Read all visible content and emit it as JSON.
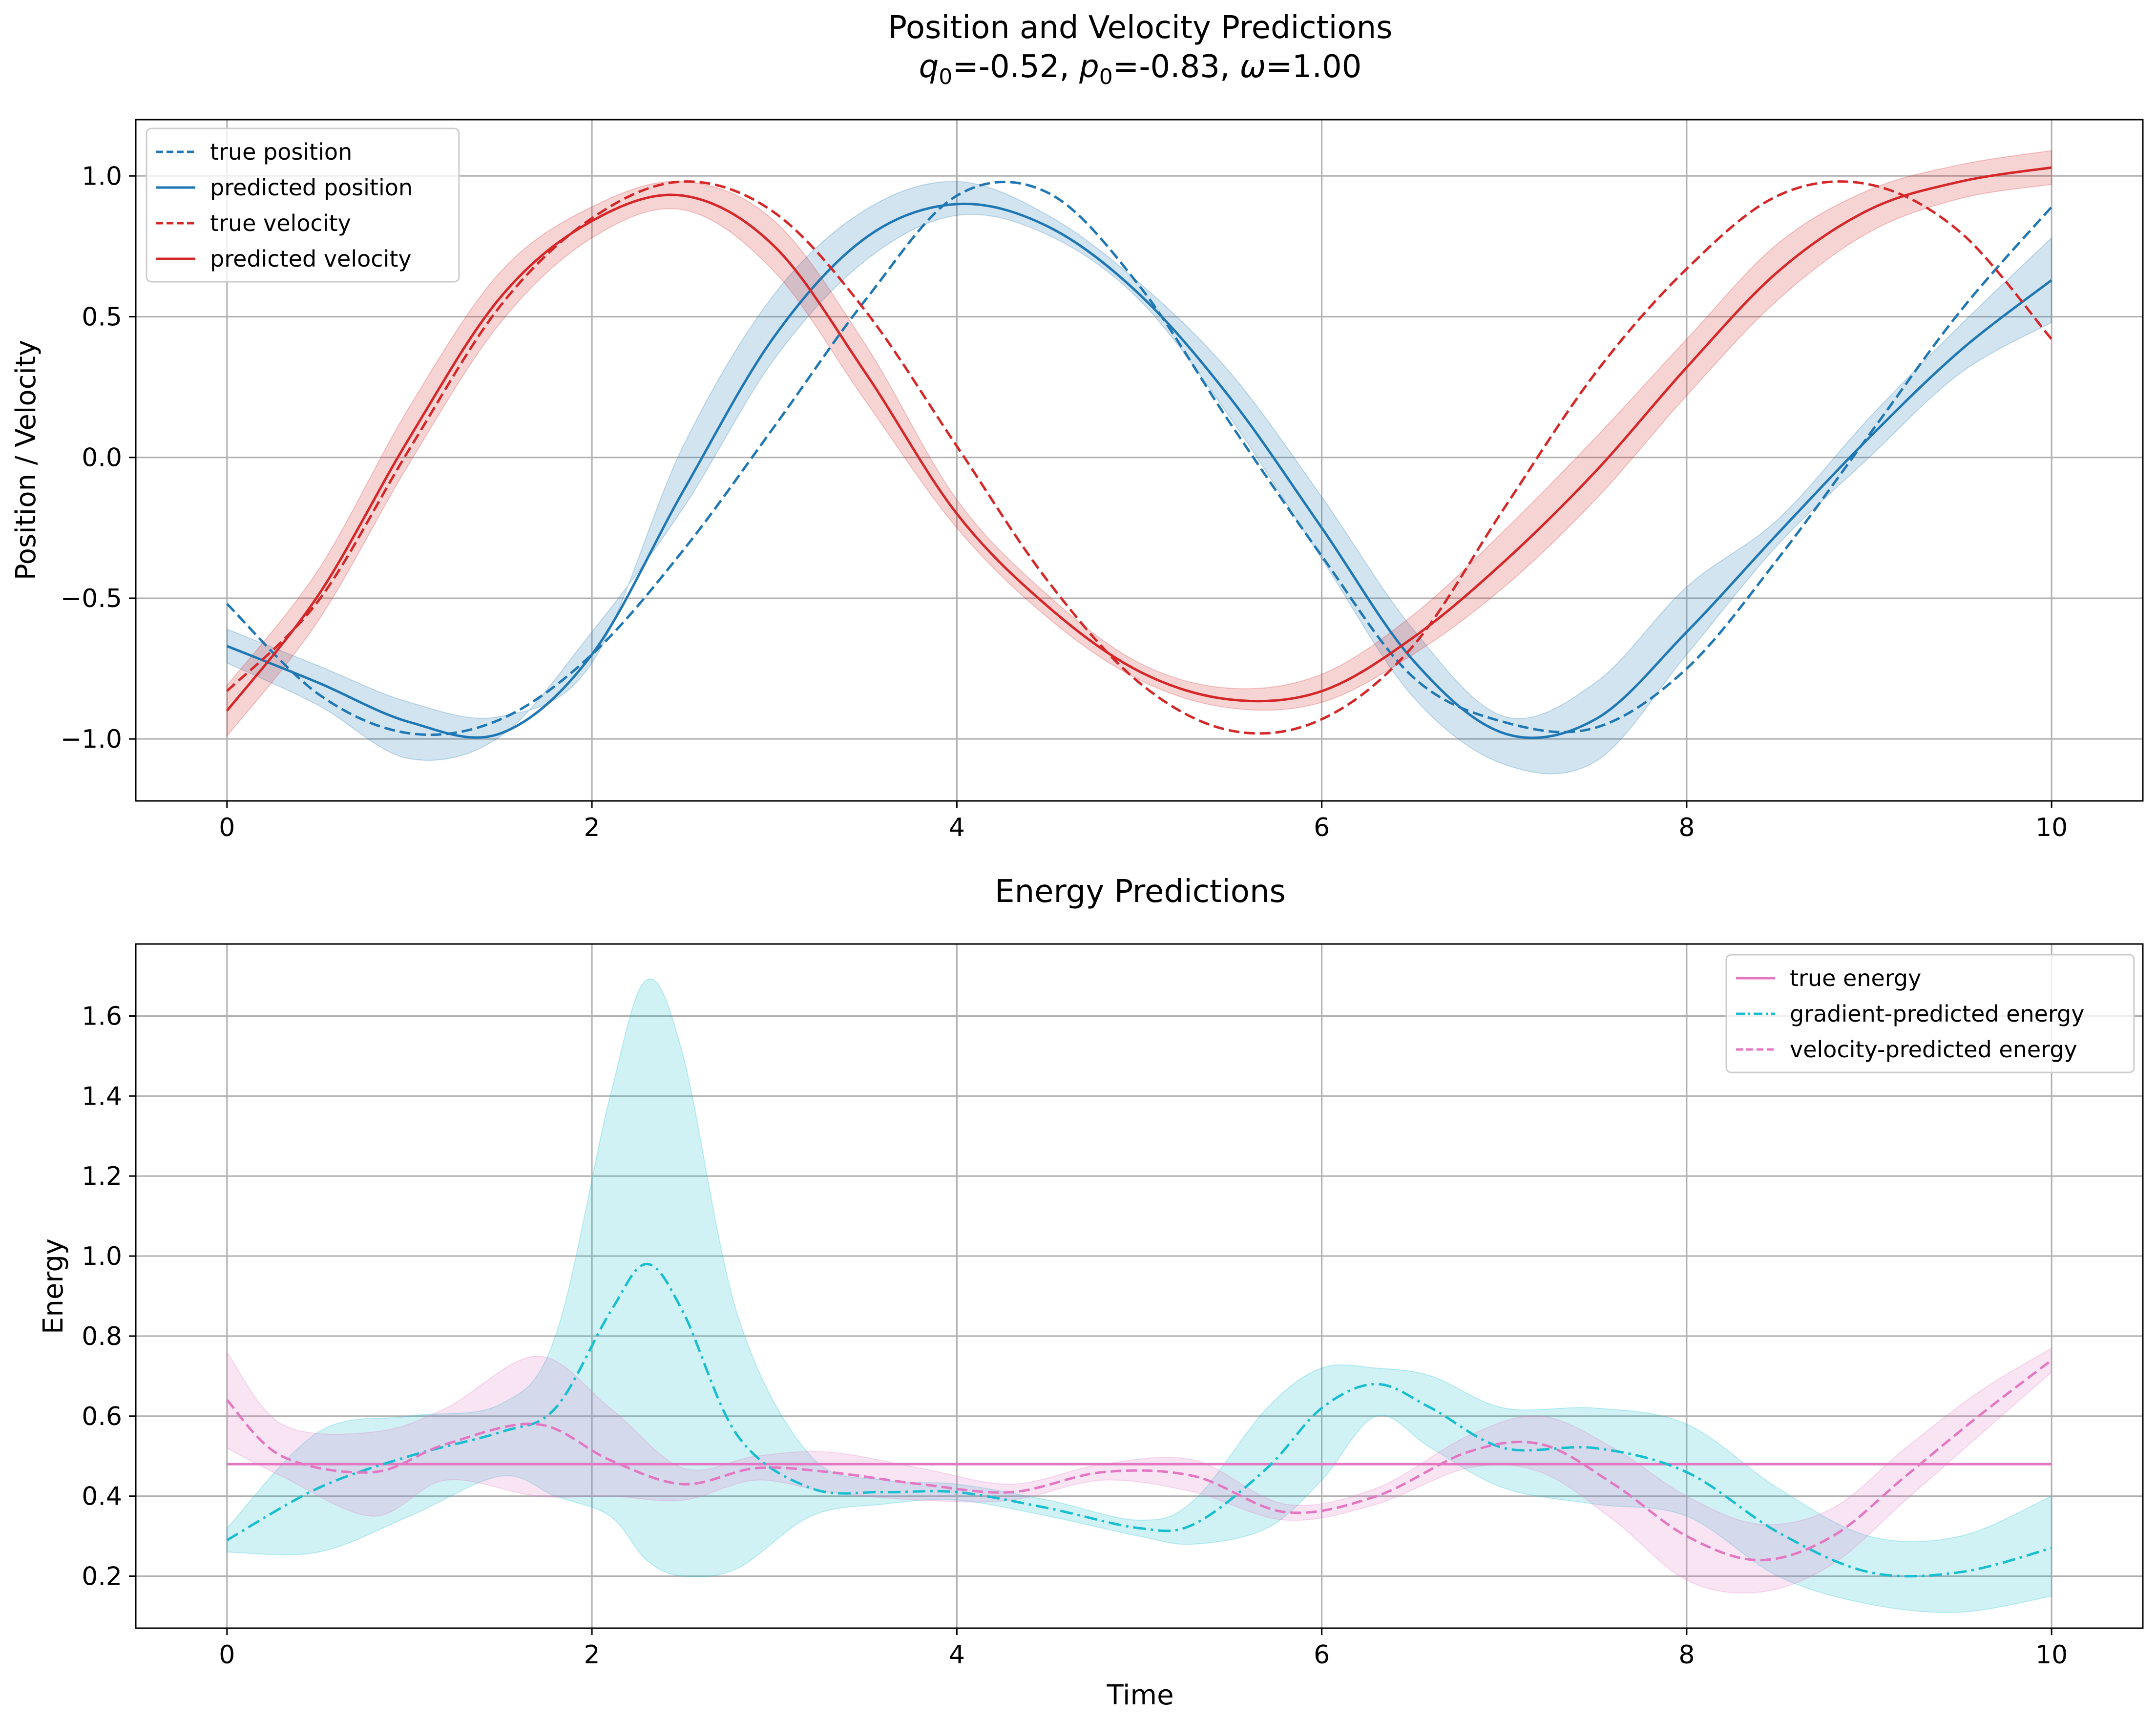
{
  "chart_data": [
    {
      "type": "line",
      "title": "Position and Velocity Predictions",
      "subtitle": {
        "q_symbol": "q",
        "q_sub": "0",
        "q_value": "=-0.52, ",
        "p_symbol": "p",
        "p_sub": "0",
        "p_value": "=-0.83, ",
        "omega_symbol": "ω",
        "omega_value": "=1.00"
      },
      "xlabel": "",
      "ylabel": "Position / Velocity",
      "xlim": [
        -0.5,
        10.5
      ],
      "ylim": [
        -1.22,
        1.2
      ],
      "xticks": [
        0,
        2,
        4,
        6,
        8,
        10
      ],
      "xtick_labels": [
        "0",
        "2",
        "4",
        "6",
        "8",
        "10"
      ],
      "yticks": [
        -1.0,
        -0.5,
        0.0,
        0.5,
        1.0
      ],
      "ytick_labels": [
        "−1.0",
        "−0.5",
        "0.0",
        "0.5",
        "1.0"
      ],
      "grid": true,
      "legend_position": "top-left",
      "legend": [
        "true position",
        "predicted position",
        "true velocity",
        "predicted velocity"
      ],
      "series": [
        {
          "name": "true position",
          "color": "#1f77b4",
          "style": "dashed",
          "x": [
            0,
            0.5,
            1,
            1.5,
            2,
            2.5,
            3,
            3.5,
            4,
            4.5,
            5,
            5.5,
            6,
            6.5,
            7,
            7.5,
            8,
            8.5,
            9,
            9.5,
            10
          ],
          "y": [
            -0.52,
            -0.84,
            -0.98,
            -0.93,
            -0.7,
            -0.33,
            0.11,
            0.56,
            0.93,
            0.94,
            0.61,
            0.12,
            -0.35,
            -0.78,
            -0.94,
            -0.96,
            -0.75,
            -0.36,
            0.08,
            0.52,
            0.89
          ]
        },
        {
          "name": "predicted position",
          "color": "#1f77b4",
          "style": "solid",
          "x": [
            0,
            0.5,
            1,
            1.5,
            2,
            2.5,
            3,
            3.5,
            4,
            4.5,
            5,
            5.5,
            6,
            6.5,
            7,
            7.5,
            8,
            8.5,
            9,
            9.5,
            10
          ],
          "y": [
            -0.67,
            -0.8,
            -0.94,
            -0.98,
            -0.7,
            -0.12,
            0.43,
            0.78,
            0.9,
            0.82,
            0.58,
            0.21,
            -0.25,
            -0.72,
            -0.98,
            -0.93,
            -0.62,
            -0.27,
            0.07,
            0.38,
            0.63
          ],
          "band_lower": [
            -0.73,
            -0.88,
            -1.07,
            -0.99,
            -0.62,
            -0.18,
            0.35,
            0.7,
            0.86,
            0.79,
            0.56,
            0.14,
            -0.36,
            -0.85,
            -1.09,
            -1.08,
            -0.7,
            -0.31,
            0.0,
            0.3,
            0.48
          ],
          "band_upper": [
            -0.61,
            -0.74,
            -0.87,
            -0.92,
            -0.73,
            0.04,
            0.58,
            0.88,
            0.98,
            0.86,
            0.62,
            0.3,
            -0.14,
            -0.61,
            -0.92,
            -0.8,
            -0.46,
            -0.22,
            0.14,
            0.47,
            0.78
          ]
        },
        {
          "name": "true velocity",
          "color": "#d62728",
          "style": "dashed",
          "x": [
            0,
            0.5,
            1,
            1.5,
            2,
            2.5,
            3,
            3.5,
            4,
            4.5,
            5,
            5.5,
            6,
            6.5,
            7,
            7.5,
            8,
            8.5,
            9,
            9.5,
            10
          ],
          "y": [
            -0.83,
            -0.51,
            0.03,
            0.54,
            0.85,
            0.98,
            0.87,
            0.52,
            0.04,
            -0.44,
            -0.8,
            -0.97,
            -0.93,
            -0.67,
            -0.18,
            0.3,
            0.67,
            0.93,
            0.97,
            0.8,
            0.42
          ]
        },
        {
          "name": "predicted velocity",
          "color": "#d62728",
          "style": "solid",
          "x": [
            0,
            0.5,
            1,
            1.5,
            2,
            2.5,
            3,
            3.5,
            4,
            4.5,
            5,
            5.5,
            6,
            6.5,
            7,
            7.5,
            8,
            8.5,
            9,
            9.5,
            10
          ],
          "y": [
            -0.9,
            -0.49,
            0.07,
            0.57,
            0.84,
            0.93,
            0.75,
            0.3,
            -0.2,
            -0.53,
            -0.76,
            -0.86,
            -0.83,
            -0.64,
            -0.37,
            -0.05,
            0.32,
            0.66,
            0.88,
            0.98,
            1.03
          ],
          "band_lower": [
            -0.99,
            -0.58,
            -0.02,
            0.48,
            0.78,
            0.88,
            0.66,
            0.2,
            -0.25,
            -0.57,
            -0.79,
            -0.89,
            -0.87,
            -0.7,
            -0.46,
            -0.15,
            0.22,
            0.56,
            0.8,
            0.92,
            0.97
          ],
          "band_upper": [
            -0.81,
            -0.4,
            0.18,
            0.66,
            0.89,
            0.98,
            0.84,
            0.4,
            -0.15,
            -0.49,
            -0.73,
            -0.82,
            -0.77,
            -0.56,
            -0.26,
            0.07,
            0.42,
            0.76,
            0.95,
            1.04,
            1.09
          ]
        }
      ]
    },
    {
      "type": "line",
      "title": "Energy Predictions",
      "xlabel": "Time",
      "ylabel": "Energy",
      "xlim": [
        -0.5,
        10.5
      ],
      "ylim": [
        0.07,
        1.78
      ],
      "xticks": [
        0,
        2,
        4,
        6,
        8,
        10
      ],
      "xtick_labels": [
        "0",
        "2",
        "4",
        "6",
        "8",
        "10"
      ],
      "yticks": [
        0.2,
        0.4,
        0.6,
        0.8,
        1.0,
        1.2,
        1.4,
        1.6
      ],
      "ytick_labels": [
        "0.2",
        "0.4",
        "0.6",
        "0.8",
        "1.0",
        "1.2",
        "1.4",
        "1.6"
      ],
      "grid": true,
      "legend_position": "top-right",
      "legend": [
        "true energy",
        "gradient-predicted energy",
        "velocity-predicted energy"
      ],
      "series": [
        {
          "name": "true energy",
          "color": "#e377c2",
          "style": "solid",
          "x": [
            0,
            10
          ],
          "y": [
            0.48,
            0.48
          ]
        },
        {
          "name": "gradient-predicted energy",
          "color": "#17becf",
          "style": "dashdot",
          "x": [
            0,
            0.5,
            1,
            1.5,
            1.8,
            2.1,
            2.3,
            2.5,
            2.8,
            3.2,
            3.6,
            4,
            4.5,
            5,
            5.3,
            5.7,
            6,
            6.3,
            6.6,
            7,
            7.5,
            8,
            8.5,
            9,
            9.5,
            10
          ],
          "y": [
            0.29,
            0.42,
            0.5,
            0.56,
            0.62,
            0.86,
            0.98,
            0.86,
            0.55,
            0.42,
            0.41,
            0.41,
            0.37,
            0.32,
            0.33,
            0.47,
            0.62,
            0.68,
            0.62,
            0.52,
            0.52,
            0.46,
            0.31,
            0.21,
            0.21,
            0.27
          ],
          "band_lower": [
            0.26,
            0.26,
            0.35,
            0.45,
            0.4,
            0.35,
            0.24,
            0.2,
            0.22,
            0.35,
            0.38,
            0.39,
            0.35,
            0.3,
            0.28,
            0.32,
            0.44,
            0.6,
            0.52,
            0.42,
            0.38,
            0.35,
            0.2,
            0.13,
            0.11,
            0.15
          ],
          "band_upper": [
            0.32,
            0.56,
            0.6,
            0.63,
            0.8,
            1.4,
            1.69,
            1.5,
            0.85,
            0.5,
            0.44,
            0.43,
            0.39,
            0.34,
            0.39,
            0.62,
            0.72,
            0.72,
            0.7,
            0.62,
            0.62,
            0.58,
            0.42,
            0.3,
            0.3,
            0.4
          ]
        },
        {
          "name": "velocity-predicted energy",
          "color": "#e377c2",
          "style": "dashed",
          "x": [
            0,
            0.3,
            0.8,
            1.2,
            1.7,
            2.1,
            2.5,
            2.9,
            3.3,
            3.8,
            4.3,
            4.8,
            5.3,
            5.8,
            6.3,
            6.8,
            7.2,
            7.6,
            8,
            8.4,
            8.8,
            9.2,
            9.6,
            10
          ],
          "y": [
            0.64,
            0.5,
            0.46,
            0.53,
            0.58,
            0.49,
            0.43,
            0.47,
            0.46,
            0.43,
            0.41,
            0.46,
            0.45,
            0.36,
            0.4,
            0.51,
            0.53,
            0.43,
            0.3,
            0.24,
            0.3,
            0.45,
            0.6,
            0.74
          ],
          "band_lower": [
            0.52,
            0.45,
            0.35,
            0.44,
            0.4,
            0.4,
            0.39,
            0.44,
            0.41,
            0.39,
            0.39,
            0.44,
            0.41,
            0.34,
            0.38,
            0.47,
            0.46,
            0.34,
            0.19,
            0.16,
            0.23,
            0.39,
            0.55,
            0.71
          ],
          "band_upper": [
            0.76,
            0.58,
            0.56,
            0.62,
            0.75,
            0.62,
            0.47,
            0.5,
            0.51,
            0.47,
            0.43,
            0.48,
            0.49,
            0.38,
            0.42,
            0.55,
            0.6,
            0.52,
            0.4,
            0.33,
            0.37,
            0.52,
            0.66,
            0.77
          ]
        }
      ]
    }
  ]
}
